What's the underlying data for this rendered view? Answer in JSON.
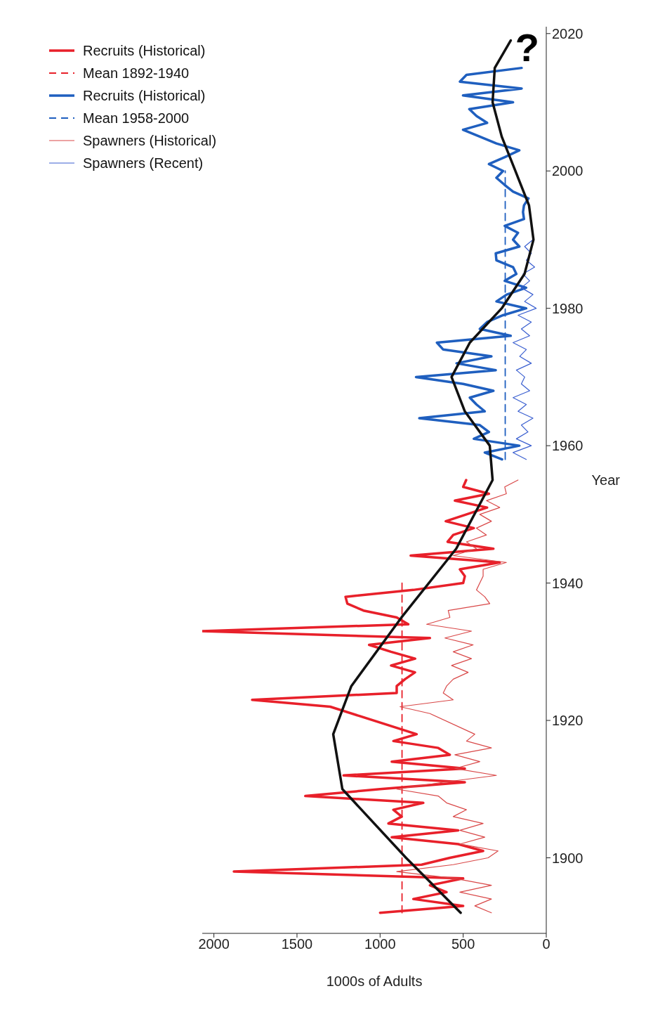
{
  "chart_data": {
    "type": "line",
    "orientation": "horizontal",
    "xlabel": "1000s of Adults",
    "ylabel": "Year",
    "xlim": [
      2070,
      0
    ],
    "xticks": [
      0,
      500,
      1000,
      1500,
      2000
    ],
    "ylim": [
      1889,
      2021
    ],
    "yticks": [
      1900,
      1920,
      1940,
      1960,
      1980,
      2000,
      2020
    ],
    "legend": "top left",
    "series": [
      {
        "name": "Recruits (Historical)",
        "color": "#e8202a",
        "x": [
          1892,
          1893,
          1894,
          1895,
          1896,
          1897,
          1898,
          1899,
          1900,
          1901,
          1902,
          1903,
          1904,
          1905,
          1906,
          1907,
          1908,
          1909,
          1910,
          1911,
          1912,
          1913,
          1914,
          1915,
          1916,
          1917,
          1918,
          1919,
          1920,
          1921,
          1922,
          1923,
          1924,
          1925,
          1926,
          1927,
          1928,
          1929,
          1930,
          1931,
          1932,
          1933,
          1934,
          1935,
          1936,
          1937,
          1938,
          1939,
          1940,
          1941,
          1942,
          1943,
          1944,
          1945,
          1946,
          1947,
          1948,
          1949,
          1950,
          1951,
          1952,
          1953,
          1954,
          1955
        ],
        "values": [
          1000,
          500,
          800,
          600,
          700,
          500,
          1880,
          750,
          580,
          380,
          530,
          930,
          530,
          950,
          870,
          920,
          740,
          1450,
          1000,
          490,
          1220,
          490,
          930,
          580,
          650,
          920,
          780,
          null,
          null,
          null,
          1300,
          1770,
          900,
          900,
          850,
          790,
          934,
          789,
          934,
          1066,
          700,
          2070,
          830,
          900,
          1100,
          1197,
          1208,
          800,
          500,
          490,
          520,
          280,
          816,
          318,
          594,
          560,
          436,
          605,
          480,
          356,
          550,
          345,
          500,
          482
        ]
      },
      {
        "name": "Mean 1892-1940",
        "color": "#e8202a",
        "line_style": "dashed",
        "x": [
          1892,
          1940
        ],
        "values": [
          868,
          868
        ]
      },
      {
        "name": "Recruits (Historical)",
        "color": "#1f5fbf",
        "x": [
          1958,
          1959,
          1960,
          1961,
          1962,
          1963,
          1964,
          1965,
          1966,
          1967,
          1968,
          1969,
          1970,
          1971,
          1972,
          1973,
          1974,
          1975,
          1976,
          1977,
          1978,
          1979,
          1980,
          1981,
          1982,
          1983,
          1984,
          1985,
          1986,
          1987,
          1988,
          1989,
          1990,
          1991,
          1992,
          1993,
          1994,
          1995,
          1996,
          1997,
          1998,
          1999,
          2000,
          2001,
          2002,
          2003,
          2004,
          2005,
          2006,
          2007,
          2008,
          2009,
          2010,
          2011,
          2012,
          2013,
          2014,
          2015
        ],
        "values": [
          266,
          370,
          162,
          436,
          345,
          400,
          764,
          370,
          420,
          460,
          318,
          500,
          784,
          304,
          540,
          330,
          620,
          658,
          214,
          400,
          356,
          260,
          121,
          300,
          238,
          121,
          250,
          180,
          200,
          300,
          304,
          162,
          200,
          170,
          250,
          134,
          140,
          134,
          107,
          200,
          252,
          300,
          260,
          345,
          250,
          162,
          300,
          400,
          501,
          356,
          420,
          463,
          200,
          501,
          148,
          520,
          480,
          148
        ]
      },
      {
        "name": "Mean 1958-2000",
        "color": "#1f5fbf",
        "line_style": "dashed",
        "x": [
          1958,
          2000
        ],
        "values": [
          247,
          247
        ]
      },
      {
        "name": "Spawners (Historical)",
        "color": "#d94848",
        "x": [
          1892,
          1893,
          1894,
          1895,
          1896,
          1897,
          1898,
          1899,
          1900,
          1901,
          1902,
          1903,
          1904,
          1905,
          1906,
          1907,
          1908,
          1909,
          1910,
          1911,
          1912,
          1913,
          1914,
          1915,
          1916,
          1917,
          1918,
          1919,
          1920,
          1921,
          1922,
          1923,
          1924,
          1925,
          1926,
          1927,
          1928,
          1929,
          1930,
          1931,
          1932,
          1933,
          1934,
          1935,
          1936,
          1937,
          1938,
          1939,
          1940,
          1941,
          1942,
          1943,
          1944,
          1945,
          1946,
          1947,
          1948,
          1949,
          1950,
          1951,
          1952,
          1953,
          1954,
          1955
        ],
        "values": [
          330,
          430,
          330,
          520,
          330,
          550,
          900,
          560,
          350,
          290,
          520,
          370,
          520,
          380,
          560,
          480,
          600,
          650,
          900,
          620,
          300,
          550,
          400,
          550,
          330,
          480,
          430,
          null,
          null,
          700,
          880,
          560,
          620,
          600,
          560,
          470,
          570,
          450,
          560,
          440,
          610,
          450,
          720,
          580,
          590,
          340,
          370,
          420,
          400,
          380,
          380,
          240,
          560,
          420,
          480,
          360,
          420,
          330,
          400,
          280,
          360,
          240,
          250,
          170
        ]
      },
      {
        "name": "Spawners (Recent)",
        "color": "#3a5fd0",
        "x": [
          1958,
          1959,
          1960,
          1961,
          1962,
          1963,
          1964,
          1965,
          1966,
          1967,
          1968,
          1969,
          1970,
          1971,
          1972,
          1973,
          1974,
          1975,
          1976,
          1977,
          1978,
          1979,
          1980,
          1981,
          1982,
          1983,
          1984,
          1985,
          1986,
          1987,
          1988,
          1989,
          1990
        ],
        "values": [
          120,
          200,
          90,
          180,
          110,
          150,
          80,
          170,
          120,
          200,
          100,
          150,
          130,
          180,
          90,
          160,
          120,
          200,
          100,
          150,
          90,
          170,
          60,
          130,
          80,
          150,
          100,
          140,
          70,
          120,
          90,
          130,
          80
        ]
      },
      {
        "color": "#111111",
        "x": [
          1892,
          1900,
          1910,
          1918,
          1925,
          1935,
          1945,
          1955,
          1960,
          1965,
          1970,
          1975,
          1980,
          1985,
          1990,
          1995,
          2000,
          2005,
          2010,
          2015,
          2019
        ],
        "values": [
          515,
          844,
          1227,
          1282,
          1173,
          871,
          542,
          323,
          340,
          490,
          570,
          460,
          268,
          131,
          77,
          104,
          186,
          268,
          323,
          310,
          214
        ]
      }
    ],
    "annotations": [
      "?"
    ]
  }
}
